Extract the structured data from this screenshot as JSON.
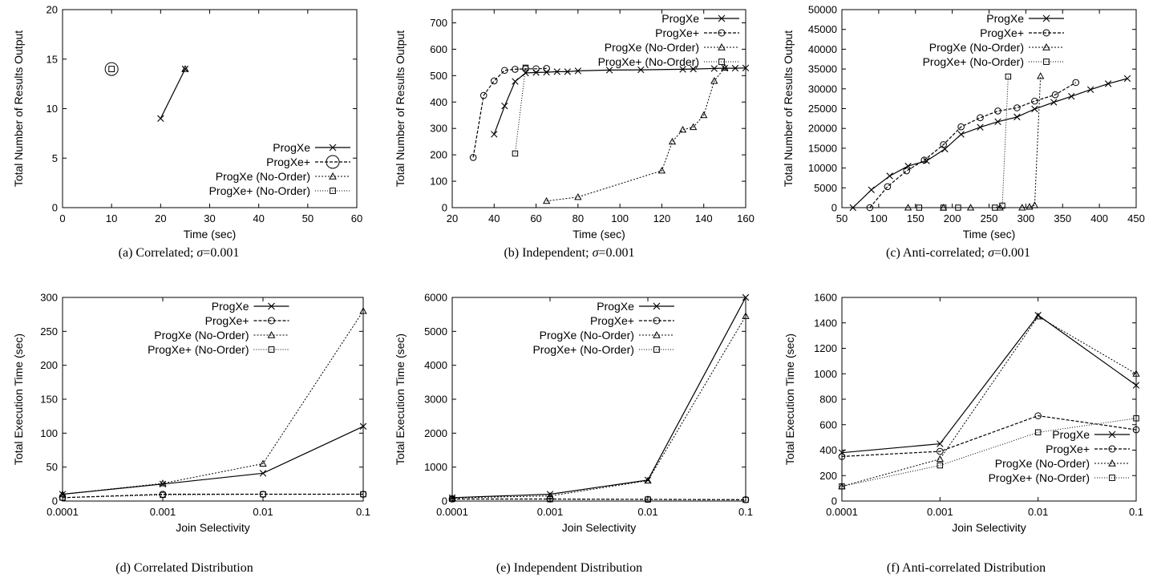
{
  "series_names": [
    "ProgXe",
    "ProgXe+",
    "ProgXe (No-Order)",
    "ProgXe+ (No-Order)"
  ],
  "chart_data": [
    {
      "id": "a",
      "type": "line",
      "caption_prefix": "(a) Correlated; ",
      "caption_sigma": "σ",
      "caption_suffix": "=0.001",
      "xlabel": "Time (sec)",
      "ylabel": "Total Number of Results Output",
      "xlim": [
        0,
        60
      ],
      "ylim": [
        0,
        20
      ],
      "xticks": [
        0,
        10,
        20,
        30,
        40,
        50,
        60
      ],
      "yticks": [
        0,
        5,
        10,
        15,
        20
      ],
      "legend_position": "bottom-right",
      "series": [
        {
          "name": "ProgXe",
          "points": [
            [
              20,
              9
            ],
            [
              25,
              14
            ]
          ]
        },
        {
          "name": "ProgXe+",
          "points": [
            [
              10,
              14
            ]
          ]
        },
        {
          "name": "ProgXe (No-Order)",
          "points": [
            [
              25,
              14
            ]
          ]
        },
        {
          "name": "ProgXe+ (No-Order)",
          "points": [
            [
              10,
              14
            ]
          ]
        }
      ]
    },
    {
      "id": "b",
      "type": "line",
      "caption_prefix": "(b) Independent; ",
      "caption_sigma": "σ",
      "caption_suffix": "=0.001",
      "xlabel": "Time (sec)",
      "ylabel": "Total Number of Results Output",
      "xlim": [
        20,
        160
      ],
      "ylim": [
        0,
        750
      ],
      "xticks": [
        20,
        40,
        60,
        80,
        100,
        120,
        140,
        160
      ],
      "yticks": [
        0,
        100,
        200,
        300,
        400,
        500,
        600,
        700
      ],
      "legend_position": "top-right",
      "series": [
        {
          "name": "ProgXe",
          "points": [
            [
              40,
              278
            ],
            [
              45,
              385
            ],
            [
              50,
              478
            ],
            [
              55,
              510
            ],
            [
              60,
              512
            ],
            [
              65,
              513
            ],
            [
              70,
              515
            ],
            [
              75,
              515
            ],
            [
              80,
              518
            ],
            [
              95,
              521
            ],
            [
              110,
              522
            ],
            [
              130,
              524
            ],
            [
              135,
              525
            ],
            [
              145,
              527
            ],
            [
              150,
              528
            ],
            [
              155,
              528
            ],
            [
              160,
              529
            ]
          ]
        },
        {
          "name": "ProgXe+",
          "points": [
            [
              30,
              190
            ],
            [
              35,
              425
            ],
            [
              40,
              480
            ],
            [
              45,
              520
            ],
            [
              50,
              524
            ],
            [
              55,
              526
            ],
            [
              60,
              526
            ],
            [
              65,
              527
            ]
          ]
        },
        {
          "name": "ProgXe (No-Order)",
          "points": [
            [
              65,
              25
            ],
            [
              80,
              40
            ],
            [
              120,
              140
            ],
            [
              125,
              250
            ],
            [
              130,
              295
            ],
            [
              135,
              305
            ],
            [
              140,
              350
            ],
            [
              145,
              480
            ],
            [
              150,
              530
            ]
          ]
        },
        {
          "name": "ProgXe+ (No-Order)",
          "points": [
            [
              50,
              205
            ],
            [
              55,
              530
            ]
          ]
        }
      ]
    },
    {
      "id": "c",
      "type": "line",
      "caption_prefix": "(c) Anti-correlated; ",
      "caption_sigma": "σ",
      "caption_suffix": "=0.001",
      "xlabel": "Time (sec)",
      "ylabel": "Total Number of Results Output",
      "xlim": [
        50,
        450
      ],
      "ylim": [
        0,
        50000
      ],
      "xticks": [
        50,
        100,
        150,
        200,
        250,
        300,
        350,
        400,
        450
      ],
      "yticks": [
        0,
        5000,
        10000,
        15000,
        20000,
        25000,
        30000,
        35000,
        40000,
        45000,
        50000
      ],
      "legend_position": "top-left",
      "series": [
        {
          "name": "ProgXe",
          "points": [
            [
              65,
              0
            ],
            [
              90,
              4500
            ],
            [
              115,
              8000
            ],
            [
              140,
              10500
            ],
            [
              165,
              11800
            ],
            [
              190,
              14800
            ],
            [
              212,
              18500
            ],
            [
              238,
              20300
            ],
            [
              262,
              21700
            ],
            [
              288,
              22900
            ],
            [
              312,
              24900
            ],
            [
              338,
              26600
            ],
            [
              362,
              28100
            ],
            [
              388,
              29800
            ],
            [
              412,
              31300
            ],
            [
              438,
              32600
            ]
          ]
        },
        {
          "name": "ProgXe+",
          "points": [
            [
              88,
              0
            ],
            [
              112,
              5300
            ],
            [
              138,
              9300
            ],
            [
              162,
              12000
            ],
            [
              188,
              15900
            ],
            [
              212,
              20400
            ],
            [
              238,
              22700
            ],
            [
              262,
              24400
            ],
            [
              288,
              25200
            ],
            [
              312,
              26900
            ],
            [
              340,
              28500
            ],
            [
              368,
              31600
            ]
          ]
        },
        {
          "name": "ProgXe (No-Order)",
          "points": [
            [
              140,
              0
            ],
            [
              188,
              0
            ],
            [
              225,
              0
            ],
            [
              265,
              0
            ],
            [
              295,
              0
            ],
            [
              305,
              200
            ],
            [
              312,
              600
            ],
            [
              320,
              33200
            ]
          ]
        },
        {
          "name": "ProgXe+ (No-Order)",
          "points": [
            [
              155,
              0
            ],
            [
              188,
              0
            ],
            [
              208,
              0
            ],
            [
              258,
              0
            ],
            [
              268,
              500
            ],
            [
              276,
              33100
            ]
          ]
        }
      ]
    },
    {
      "id": "d",
      "type": "line",
      "caption_prefix": "(d) Correlated Distribution",
      "caption_sigma": "",
      "caption_suffix": "",
      "xlabel": "Join Selectivity",
      "ylabel": "Total Execution Time (sec)",
      "x_scale": "log",
      "xlim": [
        0.0001,
        0.1
      ],
      "ylim": [
        0,
        300
      ],
      "xticks": [
        0.0001,
        0.001,
        0.01,
        0.1
      ],
      "xtick_labels": [
        "0.0001",
        "0.001",
        "0.01",
        "0.1"
      ],
      "yticks": [
        0,
        50,
        100,
        150,
        200,
        250,
        300
      ],
      "legend_position": "top-left",
      "series": [
        {
          "name": "ProgXe",
          "points": [
            [
              0.0001,
              10
            ],
            [
              0.001,
              25
            ],
            [
              0.01,
              41
            ],
            [
              0.1,
              110
            ]
          ]
        },
        {
          "name": "ProgXe+",
          "points": [
            [
              0.0001,
              5
            ],
            [
              0.001,
              10
            ],
            [
              0.01,
              10
            ],
            [
              0.1,
              10
            ]
          ]
        },
        {
          "name": "ProgXe (No-Order)",
          "points": [
            [
              0.0001,
              10
            ],
            [
              0.001,
              26
            ],
            [
              0.01,
              55
            ],
            [
              0.1,
              280
            ]
          ]
        },
        {
          "name": "ProgXe+ (No-Order)",
          "points": [
            [
              0.0001,
              5
            ],
            [
              0.001,
              9
            ],
            [
              0.01,
              10
            ],
            [
              0.1,
              10
            ]
          ]
        }
      ]
    },
    {
      "id": "e",
      "type": "line",
      "caption_prefix": "(e) Independent Distribution",
      "caption_sigma": "",
      "caption_suffix": "",
      "xlabel": "Join Selectivity",
      "ylabel": "Total Execution Time (sec)",
      "x_scale": "log",
      "xlim": [
        0.0001,
        0.1
      ],
      "ylim": [
        0,
        6000
      ],
      "xticks": [
        0.0001,
        0.001,
        0.01,
        0.1
      ],
      "xtick_labels": [
        "0.0001",
        "0.001",
        "0.01",
        "0.1"
      ],
      "yticks": [
        0,
        1000,
        2000,
        3000,
        4000,
        5000,
        6000
      ],
      "legend_position": "top-left",
      "series": [
        {
          "name": "ProgXe",
          "points": [
            [
              0.0001,
              100
            ],
            [
              0.001,
              200
            ],
            [
              0.01,
              620
            ],
            [
              0.1,
              6000
            ]
          ]
        },
        {
          "name": "ProgXe+",
          "points": [
            [
              0.0001,
              60
            ],
            [
              0.001,
              60
            ],
            [
              0.01,
              50
            ],
            [
              0.1,
              40
            ]
          ]
        },
        {
          "name": "ProgXe (No-Order)",
          "points": [
            [
              0.0001,
              90
            ],
            [
              0.001,
              150
            ],
            [
              0.01,
              600
            ],
            [
              0.1,
              5450
            ]
          ]
        },
        {
          "name": "ProgXe+ (No-Order)",
          "points": [
            [
              0.0001,
              60
            ],
            [
              0.001,
              55
            ],
            [
              0.01,
              45
            ],
            [
              0.1,
              35
            ]
          ]
        }
      ]
    },
    {
      "id": "f",
      "type": "line",
      "caption_prefix": "(f) Anti-correlated Distribution",
      "caption_sigma": "",
      "caption_suffix": "",
      "xlabel": "Join Selectivity",
      "ylabel": "Total Execution Time (sec)",
      "x_scale": "log",
      "xlim": [
        0.0001,
        0.1
      ],
      "ylim": [
        0,
        1600
      ],
      "xticks": [
        0.0001,
        0.001,
        0.01,
        0.1
      ],
      "xtick_labels": [
        "0.0001",
        "0.001",
        "0.01",
        "0.1"
      ],
      "yticks": [
        0,
        200,
        400,
        600,
        800,
        1000,
        1200,
        1400,
        1600
      ],
      "legend_position": "bottom-right",
      "series": [
        {
          "name": "ProgXe",
          "points": [
            [
              0.0001,
              380
            ],
            [
              0.001,
              450
            ],
            [
              0.01,
              1460
            ],
            [
              0.1,
              910
            ]
          ]
        },
        {
          "name": "ProgXe+",
          "points": [
            [
              0.0001,
              350
            ],
            [
              0.001,
              390
            ],
            [
              0.01,
              670
            ],
            [
              0.1,
              560
            ]
          ]
        },
        {
          "name": "ProgXe (No-Order)",
          "points": [
            [
              0.0001,
              115
            ],
            [
              0.001,
              330
            ],
            [
              0.01,
              1450
            ],
            [
              0.1,
              1000
            ]
          ]
        },
        {
          "name": "ProgXe+ (No-Order)",
          "points": [
            [
              0.0001,
              115
            ],
            [
              0.001,
              280
            ],
            [
              0.01,
              540
            ],
            [
              0.1,
              650
            ]
          ]
        }
      ]
    }
  ]
}
